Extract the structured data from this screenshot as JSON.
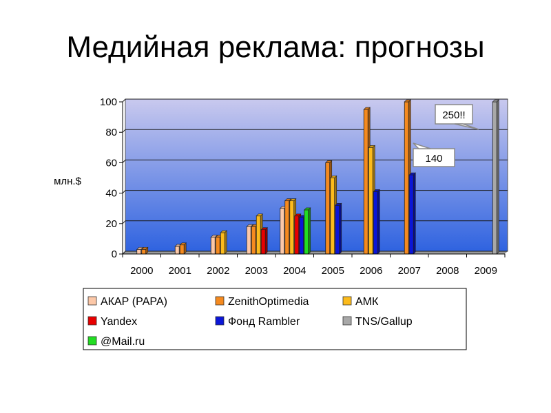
{
  "slide": {
    "title": "Медийная реклама: прогнозы"
  },
  "chart_data": {
    "type": "bar",
    "ylabel": "млн.$",
    "ylim": [
      0,
      100
    ],
    "yticks": [
      "0",
      "20",
      "40",
      "60",
      "80",
      "100"
    ],
    "categories": [
      "2000",
      "2001",
      "2002",
      "2003",
      "2004",
      "2005",
      "2006",
      "2007",
      "2008",
      "2009"
    ],
    "grid": true,
    "legend_position": "bottom",
    "series": [
      {
        "name": "АКАР (РАРА)",
        "color": "#fcc8a8",
        "values": [
          3,
          5,
          11,
          18,
          30,
          null,
          null,
          null,
          null,
          null
        ]
      },
      {
        "name": "ZenithOptimedia",
        "color": "#f58a1f",
        "values": [
          3,
          6,
          11,
          18,
          35,
          60,
          95,
          100,
          null,
          null
        ]
      },
      {
        "name": "АМК",
        "color": "#fcbb1c",
        "values": [
          null,
          null,
          14,
          25,
          35,
          50,
          70,
          null,
          null,
          null
        ]
      },
      {
        "name": "Yandex",
        "color": "#e80000",
        "values": [
          null,
          null,
          null,
          16,
          25,
          null,
          null,
          null,
          null,
          null
        ]
      },
      {
        "name": "Фонд Rambler",
        "color": "#0b16d8",
        "values": [
          null,
          null,
          null,
          null,
          24,
          32,
          41,
          52,
          null,
          null
        ]
      },
      {
        "name": "TNS/Gallup",
        "color": "#a8a8a8",
        "values": [
          null,
          null,
          null,
          null,
          null,
          null,
          null,
          null,
          null,
          100
        ]
      },
      {
        "name": "@Mail.ru",
        "color": "#22dd22",
        "values": [
          null,
          null,
          null,
          null,
          29,
          null,
          null,
          null,
          null,
          null
        ]
      }
    ],
    "callouts": [
      "250!!",
      "140"
    ]
  }
}
